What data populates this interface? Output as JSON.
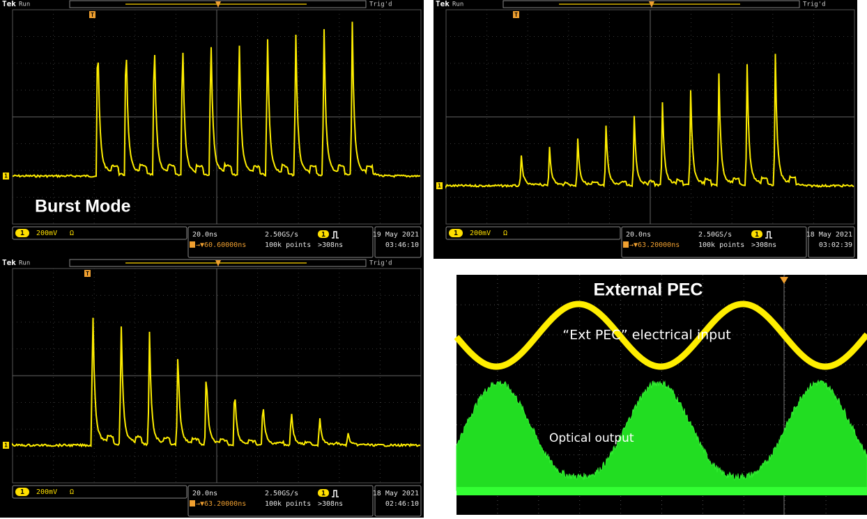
{
  "panels": [
    {
      "brand": "Tek",
      "status": "Run",
      "trigger_status": "Trig'd",
      "trigger_marker": "T",
      "channel_marker": "1",
      "scale": "200mV",
      "coupling": "Ω",
      "timebase": "20.0ns",
      "sample_rate": "2.50GS/s",
      "trigger_position": "→▼60.60000ns",
      "record_length": "100k points",
      "trigger_setting": ">308ns",
      "date": "19 May 2021",
      "time": "03:46:10",
      "label": "Burst Mode"
    },
    {
      "brand": "Tek",
      "status": "Run",
      "trigger_status": "Trig'd",
      "trigger_marker": "T",
      "channel_marker": "1",
      "scale": "200mV",
      "coupling": "Ω",
      "timebase": "20.0ns",
      "sample_rate": "2.50GS/s",
      "trigger_position": "→▼63.20000ns",
      "record_length": "100k points",
      "trigger_setting": ">308ns",
      "date": "18 May 2021",
      "time": "03:02:39"
    },
    {
      "brand": "Tek",
      "status": "Run",
      "trigger_status": "Trig'd",
      "trigger_marker": "T",
      "channel_marker": "1",
      "scale": "200mV",
      "coupling": "Ω",
      "timebase": "20.0ns",
      "sample_rate": "2.50GS/s",
      "trigger_position": "→▼63.20000ns",
      "record_length": "100k points",
      "trigger_setting": ">308ns",
      "date": "18 May 2021",
      "time": "02:46:10"
    }
  ],
  "ext_pec": {
    "title": "External PEC",
    "input_label": "“Ext PEC” electrical input",
    "output_label": "Optical output"
  }
}
